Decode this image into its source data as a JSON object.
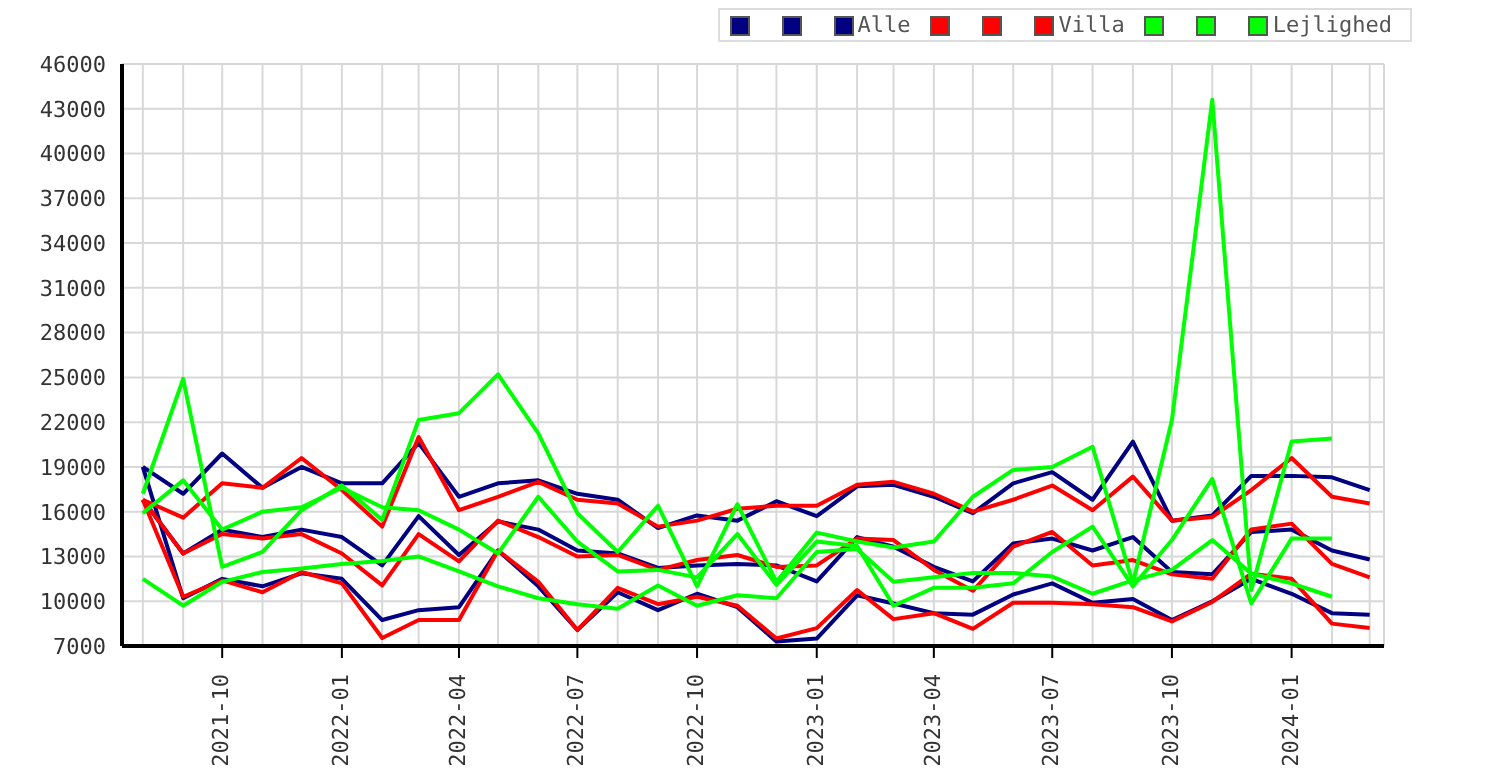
{
  "chart_data": {
    "type": "line",
    "x": [
      "2021-08",
      "2021-09",
      "2021-10",
      "2021-11",
      "2021-12",
      "2022-01",
      "2022-02",
      "2022-03",
      "2022-04",
      "2022-05",
      "2022-06",
      "2022-07",
      "2022-08",
      "2022-09",
      "2022-10",
      "2022-11",
      "2022-12",
      "2023-01",
      "2023-02",
      "2023-03",
      "2023-04",
      "2023-05",
      "2023-06",
      "2023-07",
      "2023-08",
      "2023-09",
      "2023-10",
      "2023-11",
      "2023-12",
      "2024-01",
      "2024-02",
      "2024-03"
    ],
    "xlim": [
      "2021-07-16",
      "2024-03-12"
    ],
    "xticks": [
      "2021-10",
      "2022-01",
      "2022-04",
      "2022-07",
      "2022-10",
      "2023-01",
      "2023-04",
      "2023-07",
      "2023-10",
      "2024-01"
    ],
    "ylim": [
      7000,
      46000
    ],
    "yticks": [
      7000,
      10000,
      13000,
      16000,
      19000,
      22000,
      25000,
      28000,
      31000,
      34000,
      37000,
      40000,
      43000,
      46000
    ],
    "grid": true,
    "legend": "top right",
    "marker": "none",
    "line_style": "solid",
    "series": [
      {
        "color": "#000080",
        "values": [
          19000,
          17200,
          19900,
          17600,
          19000,
          17900,
          17900,
          20600,
          17000,
          17900,
          18100,
          17200,
          16800,
          14900,
          15750,
          15400,
          16700,
          15700,
          17700,
          17800,
          17000,
          15900,
          17900,
          18650,
          16800,
          20700,
          15400,
          15750,
          18400,
          18400,
          18300,
          17450
        ]
      },
      {
        "color": "#000080",
        "values": [
          16800,
          13200,
          14800,
          14300,
          14800,
          14300,
          12400,
          15700,
          13100,
          15350,
          14800,
          13400,
          13200,
          12230,
          12400,
          12500,
          12400,
          11330,
          14300,
          13660,
          12300,
          11330,
          13870,
          14200,
          13400,
          14300,
          11960,
          11800,
          14640,
          14800,
          13400,
          12800
        ]
      },
      {
        "name": "Alle",
        "color": "#000080",
        "values": [
          19000,
          10200,
          11500,
          11000,
          11870,
          11500,
          8740,
          9400,
          9600,
          13400,
          11000,
          8070,
          10600,
          9400,
          10500,
          9600,
          7300,
          7500,
          10400,
          9850,
          9200,
          9100,
          10450,
          11200,
          9900,
          10150,
          8740,
          10000,
          11500,
          10500,
          9200,
          9100
        ]
      },
      {
        "color": "#ff0000",
        "values": [
          16800,
          15600,
          17900,
          17600,
          19600,
          17450,
          15000,
          21000,
          16100,
          17000,
          18000,
          16800,
          16550,
          15000,
          15400,
          16200,
          16400,
          16400,
          17800,
          18000,
          17200,
          16000,
          16800,
          17750,
          16100,
          18350,
          15400,
          15650,
          17450,
          19600,
          17000,
          16550
        ]
      },
      {
        "color": "#ff0000",
        "values": [
          16800,
          13200,
          14500,
          14200,
          14500,
          13200,
          11060,
          14500,
          12670,
          15400,
          14300,
          13000,
          13100,
          12100,
          12760,
          13100,
          12300,
          12400,
          14200,
          14100,
          12100,
          10700,
          13660,
          14640,
          12400,
          12760,
          11800,
          11500,
          14800,
          15200,
          12500,
          11600
        ]
      },
      {
        "name": "Villa",
        "color": "#ff0000",
        "values": [
          16800,
          10300,
          11400,
          10600,
          11960,
          11200,
          7540,
          8740,
          8740,
          13400,
          11300,
          8070,
          10900,
          9800,
          10300,
          9700,
          7500,
          8200,
          10750,
          8800,
          9200,
          8150,
          9900,
          9900,
          9800,
          9600,
          8650,
          9950,
          11850,
          11500,
          8500,
          8200
        ]
      },
      {
        "color": "#00ff00",
        "values": [
          17200,
          24900,
          12300,
          13300,
          16100,
          17750,
          15450,
          22150,
          22600,
          25200,
          21250,
          15900,
          13300,
          16400,
          11000,
          16500,
          11300,
          14600,
          14000,
          13600,
          14000,
          17000,
          18800,
          19000,
          20350,
          11200,
          22150,
          43600,
          10750,
          20700,
          20900,
          null
        ]
      },
      {
        "color": "#00ff00",
        "values": [
          15900,
          18100,
          14800,
          16000,
          16300,
          17600,
          16300,
          16100,
          14800,
          13200,
          17000,
          14000,
          12000,
          12100,
          11600,
          14500,
          11100,
          14000,
          13700,
          9700,
          10900,
          10900,
          11200,
          13300,
          15000,
          11000,
          14100,
          18200,
          9850,
          14200,
          14200,
          null
        ]
      },
      {
        "name": "Lejlighed",
        "color": "#00ff00",
        "values": [
          11500,
          9700,
          11300,
          11960,
          12200,
          12500,
          12700,
          13000,
          12000,
          11000,
          10200,
          9800,
          9500,
          11060,
          9700,
          10400,
          10200,
          13300,
          13500,
          11300,
          11600,
          11900,
          11900,
          11650,
          10500,
          11400,
          12100,
          14100,
          11850,
          11200,
          10300,
          null
        ]
      }
    ]
  }
}
